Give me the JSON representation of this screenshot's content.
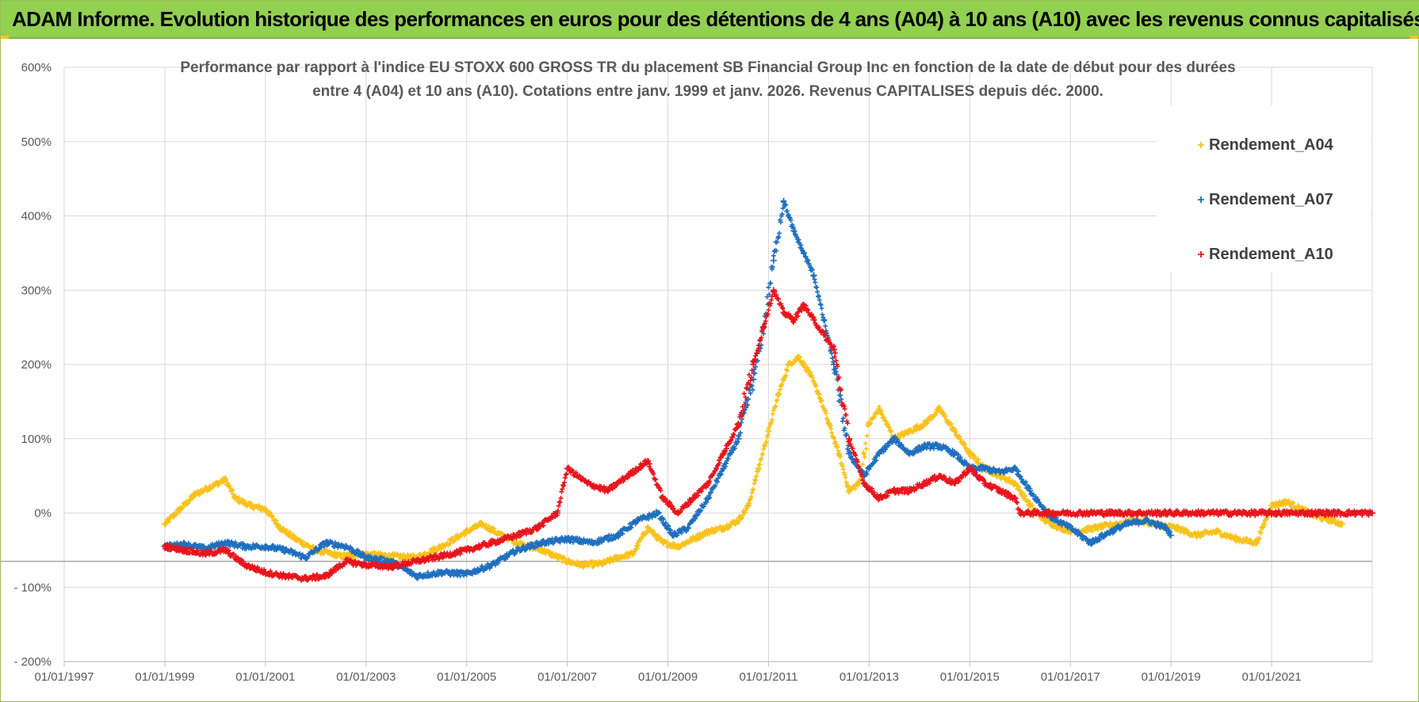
{
  "banner": {
    "text": "ADAM Informe. Evolution historique des performances en euros pour des détentions de 4 ans (A04) à 10 ans (A10) avec les revenus connus capitalisés"
  },
  "colors": {
    "banner_bg": "#92d050",
    "A04": "#f9c21b",
    "A07": "#1f6fbf",
    "A10": "#e8141c",
    "grid": "#d9d9d9",
    "text": "#595959"
  },
  "chart_data": {
    "type": "scatter",
    "title_lines": [
      "Performance par rapport à l'indice EU STOXX 600 GROSS TR  du placement SB Financial Group Inc en fonction de la date de début pour des durées",
      "entre 4 (A04) et 10 ans (A10). Cotations entre janv. 1999 et janv. 2026. Revenus CAPITALISES depuis déc. 2000."
    ],
    "xlabel": "",
    "ylabel": "",
    "xlim": [
      1997.0,
      2023.0
    ],
    "ylim": [
      -200,
      600
    ],
    "y_ticks": [
      {
        "value": 600,
        "label": "600%"
      },
      {
        "value": 500,
        "label": "500%"
      },
      {
        "value": 400,
        "label": "400%"
      },
      {
        "value": 300,
        "label": "300%"
      },
      {
        "value": 200,
        "label": "200%"
      },
      {
        "value": 100,
        "label": "100%"
      },
      {
        "value": 0,
        "label": "0%"
      },
      {
        "value": -100,
        "label": "- 100%"
      },
      {
        "value": -200,
        "label": "- 200%"
      }
    ],
    "x_ticks": [
      {
        "value": 1997,
        "label": "01/01/1997"
      },
      {
        "value": 1999,
        "label": "01/01/1999"
      },
      {
        "value": 2001,
        "label": "01/01/2001"
      },
      {
        "value": 2003,
        "label": "01/01/2003"
      },
      {
        "value": 2005,
        "label": "01/01/2005"
      },
      {
        "value": 2007,
        "label": "01/01/2007"
      },
      {
        "value": 2009,
        "label": "01/01/2009"
      },
      {
        "value": 2011,
        "label": "01/01/2011"
      },
      {
        "value": 2013,
        "label": "01/01/2013"
      },
      {
        "value": 2015,
        "label": "01/01/2015"
      },
      {
        "value": 2017,
        "label": "01/01/2017"
      },
      {
        "value": 2019,
        "label": "01/01/2019"
      },
      {
        "value": 2021,
        "label": "01/01/2021"
      }
    ],
    "reference_line_value": -65,
    "legend": {
      "placement": "top-right"
    },
    "series": [
      {
        "name": "Rendement_A04",
        "color": "#f9c21b",
        "marker": "+",
        "x": [
          1999.0,
          1999.3,
          1999.6,
          1999.9,
          2000.2,
          2000.4,
          2000.7,
          2001.0,
          2001.3,
          2001.6,
          2002.0,
          2002.5,
          2003.0,
          2003.5,
          2004.0,
          2004.5,
          2005.0,
          2005.3,
          2005.7,
          2006.0,
          2006.5,
          2007.0,
          2007.3,
          2007.7,
          2008.0,
          2008.3,
          2008.6,
          2008.9,
          2009.2,
          2009.5,
          2009.8,
          2010.1,
          2010.4,
          2010.6,
          2010.8,
          2011.0,
          2011.2,
          2011.4,
          2011.6,
          2011.8,
          2012.0,
          2012.2,
          2012.4,
          2012.6,
          2012.8,
          2013.0,
          2013.2,
          2013.5,
          2013.8,
          2014.1,
          2014.4,
          2014.7,
          2015.0,
          2015.3,
          2015.6,
          2015.9,
          2016.2,
          2016.5,
          2016.8,
          2017.1,
          2017.5,
          2017.9,
          2018.3,
          2018.7,
          2019.1,
          2019.5,
          2019.9,
          2020.3,
          2020.7,
          2021.0,
          2021.3,
          2021.6,
          2021.9,
          2022.2,
          2022.4
        ],
        "y": [
          -15,
          5,
          25,
          35,
          45,
          20,
          10,
          5,
          -20,
          -35,
          -50,
          -58,
          -55,
          -58,
          -60,
          -45,
          -25,
          -15,
          -30,
          -40,
          -50,
          -65,
          -70,
          -68,
          -60,
          -55,
          -20,
          -40,
          -45,
          -35,
          -25,
          -20,
          -10,
          10,
          60,
          110,
          160,
          200,
          210,
          190,
          160,
          120,
          80,
          30,
          40,
          120,
          140,
          100,
          110,
          120,
          140,
          110,
          80,
          60,
          50,
          40,
          10,
          -10,
          -20,
          -25,
          -20,
          -15,
          -10,
          -15,
          -20,
          -30,
          -25,
          -35,
          -40,
          10,
          15,
          5,
          -5,
          -10,
          -15
        ]
      },
      {
        "name": "Rendement_A07",
        "color": "#1f6fbf",
        "marker": "+",
        "x": [
          1999.0,
          1999.4,
          1999.8,
          2000.2,
          2000.6,
          2001.0,
          2001.4,
          2001.8,
          2002.2,
          2002.6,
          2003.0,
          2003.5,
          2004.0,
          2004.5,
          2005.0,
          2005.5,
          2006.0,
          2006.5,
          2007.0,
          2007.5,
          2008.0,
          2008.4,
          2008.8,
          2009.1,
          2009.4,
          2009.8,
          2010.1,
          2010.4,
          2010.7,
          2010.9,
          2011.1,
          2011.3,
          2011.5,
          2011.7,
          2011.9,
          2012.1,
          2012.3,
          2012.6,
          2012.9,
          2013.2,
          2013.5,
          2013.8,
          2014.1,
          2014.4,
          2014.7,
          2015.0,
          2015.3,
          2015.6,
          2015.9,
          2016.2,
          2016.6,
          2017.0,
          2017.4,
          2017.8,
          2018.1,
          2018.5,
          2018.9,
          2019.0
        ],
        "y": [
          -45,
          -42,
          -48,
          -40,
          -45,
          -45,
          -50,
          -60,
          -40,
          -45,
          -60,
          -65,
          -85,
          -80,
          -82,
          -70,
          -50,
          -40,
          -35,
          -40,
          -30,
          -10,
          0,
          -30,
          -20,
          20,
          60,
          100,
          180,
          250,
          340,
          420,
          380,
          350,
          320,
          260,
          200,
          80,
          50,
          80,
          100,
          80,
          90,
          90,
          80,
          60,
          60,
          55,
          60,
          30,
          -5,
          -20,
          -40,
          -25,
          -15,
          -10,
          -20,
          -30
        ]
      },
      {
        "name": "Rendement_A10",
        "color": "#e8141c",
        "marker": "+",
        "x": [
          1999.0,
          1999.4,
          1999.8,
          2000.2,
          2000.6,
          2001.0,
          2001.4,
          2001.8,
          2002.2,
          2002.6,
          2003.0,
          2003.5,
          2004.0,
          2004.5,
          2005.0,
          2005.5,
          2006.0,
          2006.4,
          2006.8,
          2007.0,
          2007.4,
          2007.8,
          2008.2,
          2008.6,
          2008.9,
          2009.2,
          2009.5,
          2009.8,
          2010.1,
          2010.4,
          2010.7,
          2010.9,
          2011.1,
          2011.3,
          2011.5,
          2011.7,
          2011.9,
          2012.1,
          2012.3,
          2012.6,
          2012.9,
          2013.2,
          2013.5,
          2013.8,
          2014.1,
          2014.4,
          2014.7,
          2015.0,
          2015.3,
          2015.6,
          2015.9,
          2016.0,
          2017.0,
          2018.0,
          2019.0,
          2020.0,
          2021.0,
          2022.0,
          2023.0
        ],
        "y": [
          -45,
          -50,
          -55,
          -50,
          -70,
          -80,
          -85,
          -88,
          -85,
          -65,
          -70,
          -72,
          -65,
          -58,
          -50,
          -40,
          -30,
          -20,
          0,
          60,
          40,
          30,
          50,
          70,
          20,
          0,
          20,
          40,
          80,
          120,
          200,
          250,
          300,
          270,
          260,
          280,
          260,
          240,
          220,
          100,
          40,
          20,
          30,
          30,
          40,
          50,
          40,
          60,
          40,
          30,
          20,
          0,
          0,
          0,
          0,
          0,
          0,
          0,
          0
        ]
      }
    ]
  }
}
